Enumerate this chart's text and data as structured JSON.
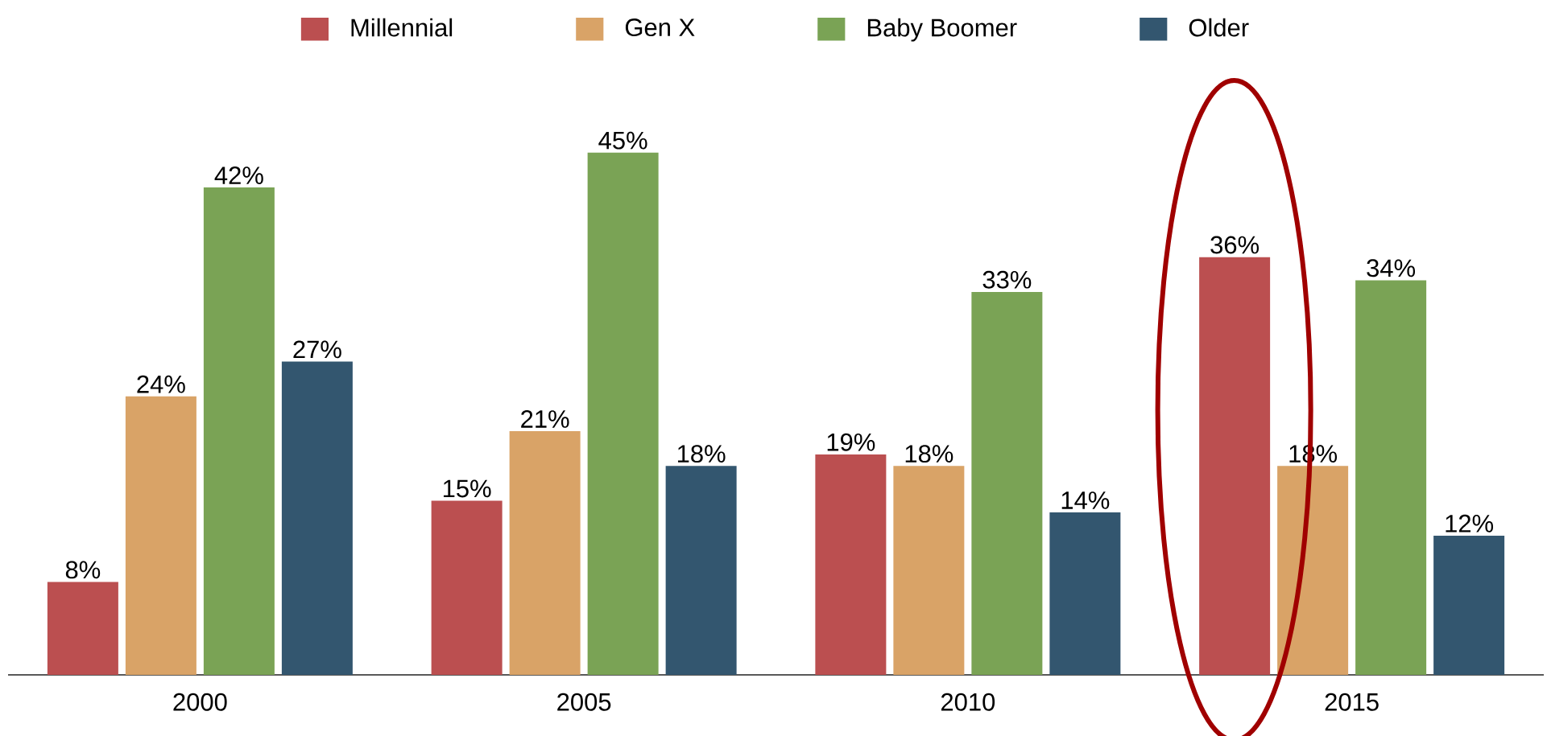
{
  "chart_data": {
    "type": "bar",
    "categories": [
      "2000",
      "2005",
      "2010",
      "2015"
    ],
    "legend": "top",
    "series": [
      {
        "name": "Millennial",
        "color": "#bb4f50",
        "values": [
          8,
          15,
          19,
          36
        ],
        "value_labels": [
          "8%",
          "15%",
          "19%",
          "36%"
        ]
      },
      {
        "name": "Gen X",
        "color": "#d9a367",
        "values": [
          24,
          21,
          18,
          18
        ],
        "value_labels": [
          "24%",
          "21%",
          "18%",
          "18%"
        ]
      },
      {
        "name": "Baby Boomer",
        "color": "#7aa355",
        "values": [
          42,
          45,
          33,
          34
        ],
        "value_labels": [
          "42%",
          "45%",
          "33%",
          "34%"
        ]
      },
      {
        "name": "Older",
        "color": "#33566f",
        "values": [
          27,
          18,
          14,
          12
        ],
        "value_labels": [
          "27%",
          "18%",
          "14%",
          "12%"
        ]
      }
    ]
  }
}
